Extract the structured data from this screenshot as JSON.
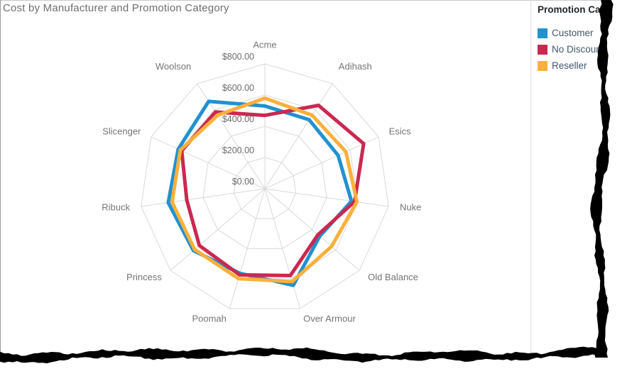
{
  "header": {
    "title": "Cost by Manufacturer and Promotion Category"
  },
  "legend": {
    "title": "Promotion Category",
    "items": [
      {
        "label": "Customer",
        "color": "#2191d0"
      },
      {
        "label": "No Discount",
        "color": "#ca2850"
      },
      {
        "label": "Reseller",
        "color": "#fbb03b"
      }
    ]
  },
  "chart_data": {
    "type": "radar",
    "title": "Cost by Manufacturer and Promotion Category",
    "categories": [
      "Acme",
      "Adihash",
      "Esics",
      "Nuke",
      "Old Balance",
      "Over Armour",
      "Poomah",
      "Princess",
      "Ribuck",
      "Slicenger",
      "Woolson"
    ],
    "series": [
      {
        "name": "Customer",
        "color": "#2191d0",
        "values": [
          530,
          525,
          515,
          560,
          465,
          645,
          565,
          605,
          625,
          610,
          665
        ]
      },
      {
        "name": "No Discount",
        "color": "#ca2850",
        "values": [
          470,
          635,
          695,
          580,
          450,
          580,
          575,
          555,
          505,
          585,
          585
        ]
      },
      {
        "name": "Reseller",
        "color": "#fbb03b",
        "values": [
          580,
          560,
          570,
          595,
          565,
          620,
          600,
          595,
          600,
          595,
          560
        ]
      }
    ],
    "value_axis": {
      "min": 0,
      "max": 800,
      "step": 200,
      "tick_labels": [
        "$0.00",
        "$200.00",
        "$400.00",
        "$600.00",
        "$800.00"
      ]
    },
    "grid": true,
    "grid_color": "#d9d9d9",
    "start_axis": "top",
    "direction": "clockwise",
    "legend_position": "right",
    "label_color": "#757575"
  }
}
